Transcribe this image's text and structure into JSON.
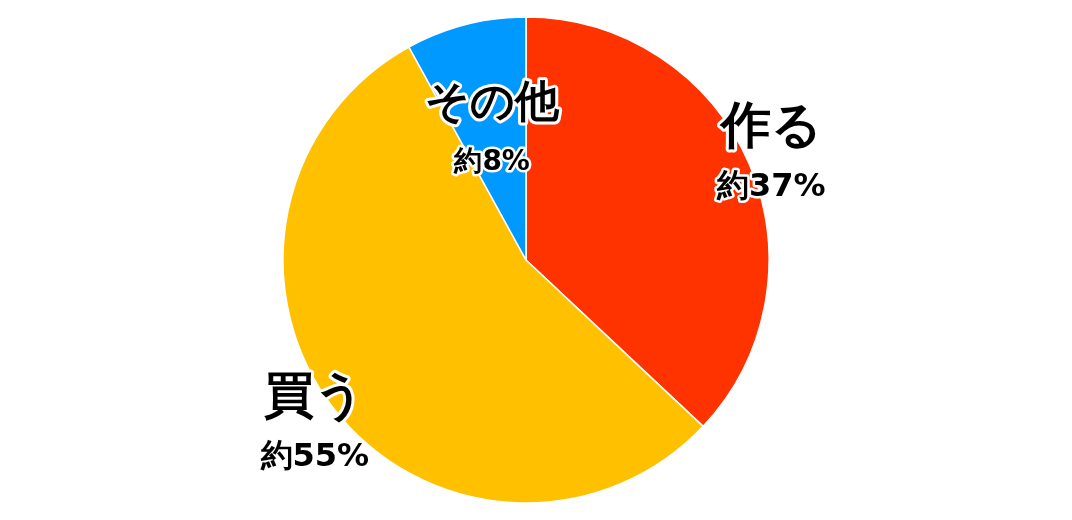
{
  "chart_data": {
    "type": "pie",
    "categories": [
      "作る",
      "買う",
      "その他"
    ],
    "values": [
      37,
      55,
      8
    ],
    "colors": [
      "#ff3300",
      "#ffc000",
      "#0099ff"
    ],
    "value_labels": [
      "約37%",
      "約55%",
      "約8%"
    ],
    "legend": false
  }
}
